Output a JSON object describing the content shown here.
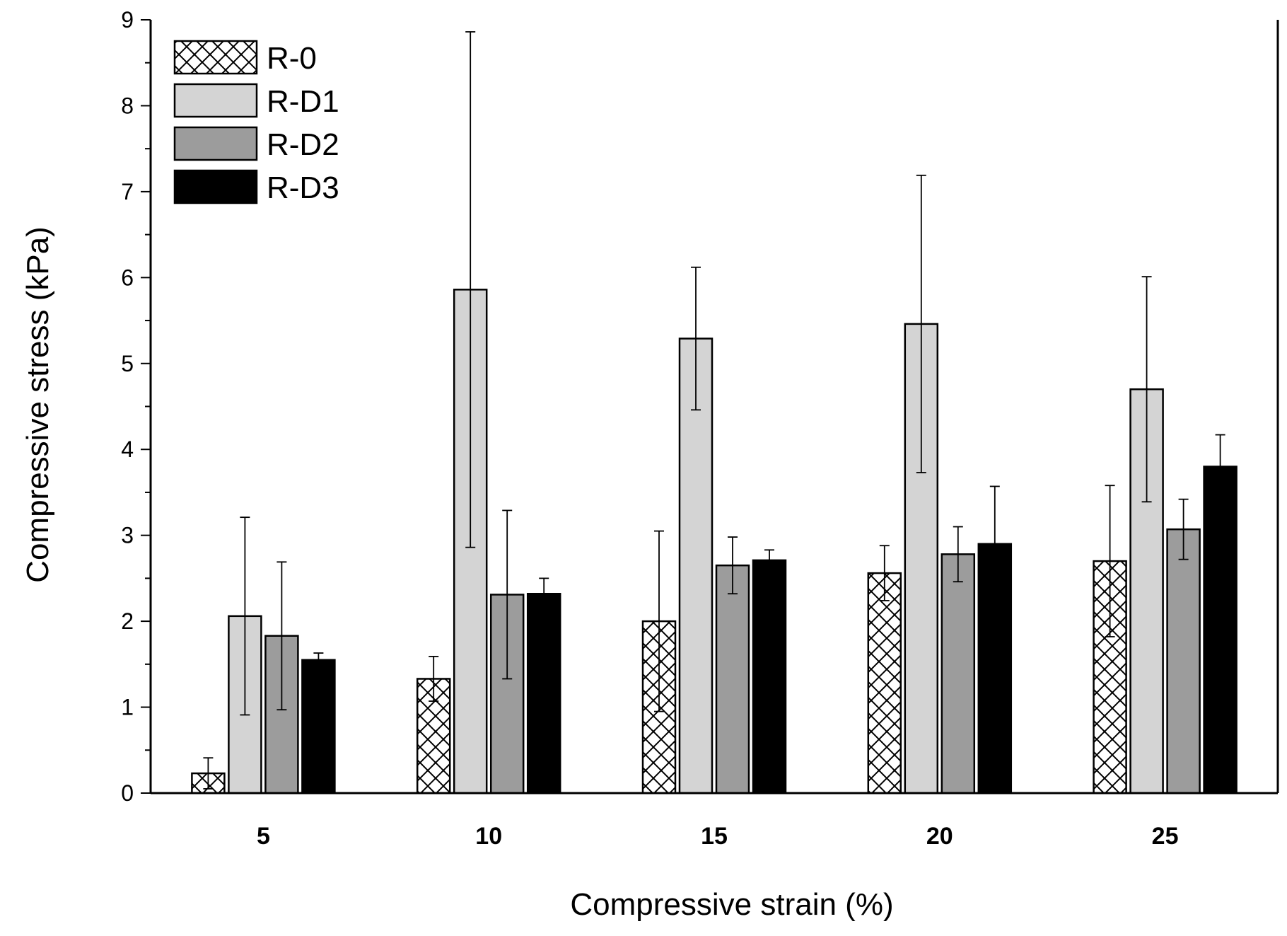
{
  "chart_data": {
    "type": "bar",
    "title": "",
    "xlabel": "Compressive strain (%)",
    "ylabel": "Compressive stress (kPa)",
    "ylim": [
      0,
      9
    ],
    "yticks": [
      0,
      1,
      2,
      3,
      4,
      5,
      6,
      7,
      8,
      9
    ],
    "categories": [
      "5",
      "10",
      "15",
      "20",
      "25"
    ],
    "legend_position": "top-left",
    "series": [
      {
        "name": "R-0",
        "fill": "crosshatch",
        "color": "#ffffff",
        "values": [
          0.23,
          1.33,
          2.0,
          2.56,
          2.7
        ],
        "errors": [
          0.18,
          0.26,
          1.05,
          0.32,
          0.88
        ]
      },
      {
        "name": "R-D1",
        "fill": "solid",
        "color": "#d4d4d4",
        "values": [
          2.06,
          5.86,
          5.29,
          5.46,
          4.7
        ],
        "errors": [
          1.15,
          3.0,
          0.83,
          1.73,
          1.31
        ]
      },
      {
        "name": "R-D2",
        "fill": "solid",
        "color": "#9c9c9c",
        "values": [
          1.83,
          2.31,
          2.65,
          2.78,
          3.07
        ],
        "errors": [
          0.86,
          0.98,
          0.33,
          0.32,
          0.35
        ]
      },
      {
        "name": "R-D3",
        "fill": "solid",
        "color": "#000000",
        "values": [
          1.55,
          2.32,
          2.71,
          2.9,
          3.8
        ],
        "errors": [
          0.08,
          0.18,
          0.12,
          0.67,
          0.37
        ]
      }
    ]
  }
}
